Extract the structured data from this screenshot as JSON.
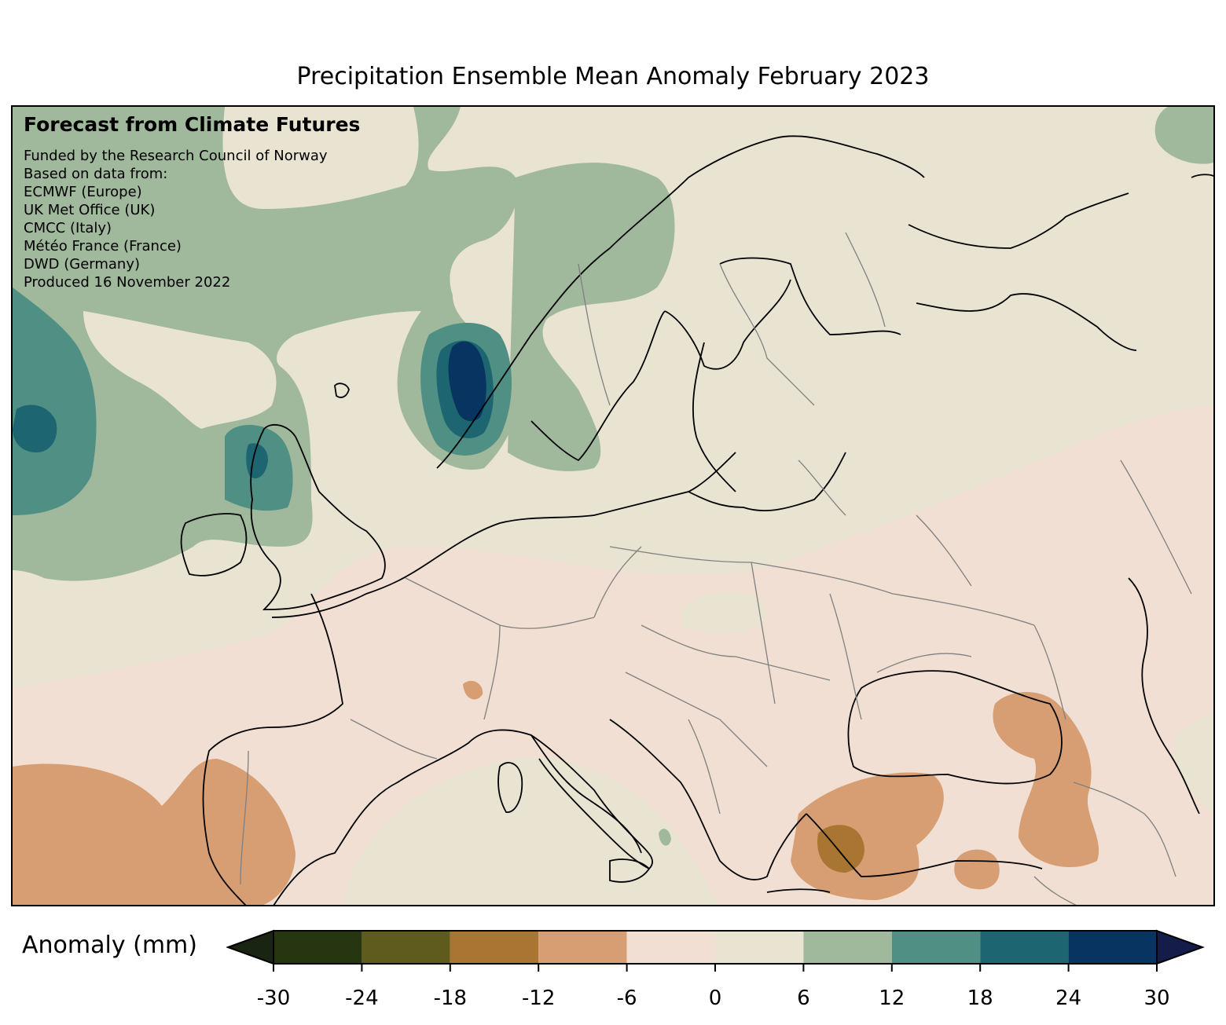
{
  "title": "Precipitation Ensemble Mean Anomaly February 2023",
  "credits": {
    "heading": "Forecast from Climate Futures",
    "lines": [
      "Funded by the Research Council of Norway",
      "Based on data from:",
      "ECMWF (Europe)",
      "UK Met Office (UK)",
      "CMCC (Italy)",
      "Météo France (France)",
      "DWD (Germany)",
      "Produced 16 November 2022"
    ]
  },
  "colorbar": {
    "label": "Anomaly (mm)",
    "ticks": [
      "-30",
      "-24",
      "-18",
      "-12",
      "-6",
      "0",
      "6",
      "12",
      "18",
      "24",
      "30"
    ],
    "under_color": "#1a2412",
    "over_color": "#141c4a",
    "bin_colors": [
      "#253611",
      "#5e5b1c",
      "#a87632",
      "#d69e72",
      "#f0dfd2",
      "#e9e3d2",
      "#a0b89c",
      "#508f84",
      "#1d6570",
      "#083462"
    ]
  },
  "colors": {
    "land_outline": "#000000",
    "borders": "#808080",
    "ocean": "#e9e3d2"
  }
}
